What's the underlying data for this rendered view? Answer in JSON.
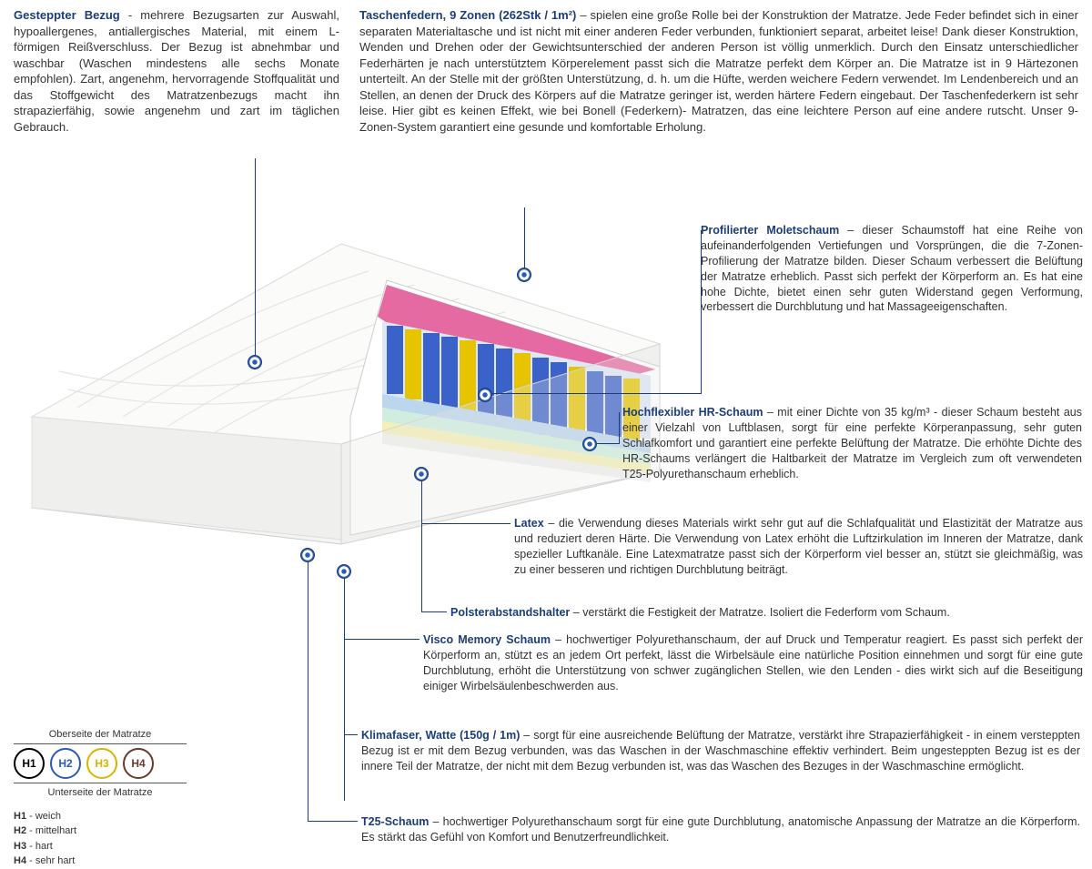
{
  "top_left": {
    "title": "Gesteppter Bezug",
    "sep": " - ",
    "text": "mehrere Bezugsarten zur Auswahl, hypoallergenes, antiallergisches Material, mit einem L-förmigen Reißverschluss. Der Bezug ist abnehmbar und waschbar (Waschen mindestens alle sechs Monate empfohlen). Zart, angenehm, hervorragende Stoffqualität und das Stoffgewicht des Matratzenbezugs macht ihn strapazierfähig, sowie angenehm und zart im täglichen Gebrauch."
  },
  "top_right": {
    "title": "Taschenfedern, 9 Zonen (262Stk / 1m²)",
    "sep": " – ",
    "text": "spielen eine große Rolle bei der Konstruktion der Matratze. Jede Feder befindet sich in einer separaten Materialtasche und ist nicht mit einer anderen Feder verbunden, funktioniert separat, arbeitet leise! Dank dieser Konstruktion, Wenden und Drehen oder der Gewichtsunterschied der anderen Person ist völlig unmerklich. Durch den Einsatz unterschiedlicher Federhärten je nach unterstütztem Körperelement passt sich die Matratze perfekt dem Körper an. Die Matratze ist in 9 Härtezonen unterteilt. An der Stelle mit der größten Unterstützung, d. h. um die Hüfte, werden weichere Federn verwendet. Im Lendenbereich und an Stellen, an denen der Druck des Körpers auf die Matratze geringer ist, werden härtere Federn eingebaut. Der Taschenfederkern ist sehr leise. Hier gibt es keinen Effekt, wie bei Bonell (Federkern)- Matratzen, das eine leichtere Person auf eine andere rutscht. Unser 9-Zonen-System garantiert eine gesunde und komfortable Erholung."
  },
  "entries": {
    "moletschaum": {
      "title": "Profilierter Moletschaum",
      "sep": " – ",
      "text": "dieser Schaumstoff hat eine Reihe von aufeinanderfolgenden Vertiefungen und Vorsprüngen, die die 7-Zonen-Profilierung der Matratze bilden. Dieser Schaum verbessert die Belüftung der Matratze erheblich. Passt sich perfekt der Körperform an. Es hat eine hohe Dichte, bietet einen sehr guten Widerstand gegen Verformung, verbessert die Durchblutung und hat Massageeigenschaften."
    },
    "hr": {
      "title": "Hochflexibler HR-Schaum",
      "sep": " – ",
      "text": "mit einer Dichte von 35 kg/m³ - dieser Schaum besteht aus einer Vielzahl von Luftblasen, sorgt für eine perfekte Körperanpassung, sehr guten Schlafkomfort und garantiert eine perfekte Belüftung der Matratze. Die erhöhte Dichte des HR-Schaums verlängert die Haltbarkeit der Matratze im Vergleich zum oft verwendeten T25-Polyurethanschaum erheblich."
    },
    "latex": {
      "title": "Latex",
      "sep": " – ",
      "text": "die Verwendung dieses Materials wirkt sehr gut auf die Schlafqualität und Elastizität der Matratze aus und reduziert deren Härte. Die Verwendung von Latex erhöht die Luftzirkulation im Inneren der Matratze, dank spezieller Luftkanäle. Eine Latexmatratze passt sich der Körperform viel besser an, stützt sie gleichmäßig, was zu einer besseren und richtigen Durchblutung beiträgt."
    },
    "polster": {
      "title": "Polsterabstandshalter",
      "sep": " – ",
      "text": "verstärkt die Festigkeit der Matratze. Isoliert die Federform vom Schaum."
    },
    "visco": {
      "title": "Visco Memory Schaum",
      "sep": " – ",
      "text": "hochwertiger Polyurethanschaum, der auf Druck und Temperatur reagiert. Es passt sich perfekt der Körperform an, stützt es an jedem Ort perfekt, lässt die Wirbelsäule eine natürliche Position einnehmen und sorgt für eine gute Durchblutung, erhöht die Unterstützung von schwer zugänglichen Stellen, wie den Lenden - dies wirkt sich auf die Beseitigung einiger Wirbelsäulenbeschwerden aus."
    },
    "klima": {
      "title": "Klimafaser, Watte (150g / 1m)",
      "sep": " – ",
      "text": "sorgt für eine ausreichende Belüftung der Matratze, verstärkt ihre Strapazierfähigkeit - in einem versteppten Bezug ist er mit dem Bezug verbunden, was das Waschen in der Waschmaschine effektiv verhindert. Beim ungesteppten Bezug ist es der innere Teil der Matratze, der nicht mit dem Bezug verbunden ist, was das Waschen des Bezuges in der Waschmaschine ermöglicht."
    },
    "t25": {
      "title": "T25-Schaum",
      "sep": " – ",
      "text": "hochwertiger Polyurethanschaum sorgt für eine gute Durchblutung, anatomische Anpassung der Matratze an die Körperform. Es stärkt das Gefühl von Komfort und Benutzerfreundlichkeit."
    }
  },
  "firmness": {
    "top_label": "Oberseite der Matratze",
    "bottom_label": "Unterseite der Matratze",
    "levels": [
      {
        "code": "H1",
        "label": "weich",
        "color": "#000000"
      },
      {
        "code": "H2",
        "label": "mittelhart",
        "color": "#2a5bb8"
      },
      {
        "code": "H3",
        "label": "hart",
        "color": "#d9b400"
      },
      {
        "code": "H4",
        "label": "sehr hart",
        "color": "#6b3a2a"
      }
    ]
  },
  "colors": {
    "title": "#1b3d7a",
    "leader": "#1b3d7a"
  }
}
